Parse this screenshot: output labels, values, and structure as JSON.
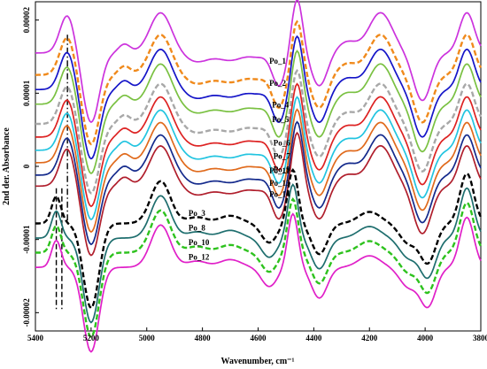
{
  "chart_data": {
    "type": "line",
    "title": "",
    "xlabel": "Wavenumber, cm⁻¹",
    "ylabel": "2nd der. Absorbance",
    "xlim": [
      5400,
      3800
    ],
    "ylim": [
      -2.25e-05,
      2.25e-05
    ],
    "x_reversed": true,
    "grid": false,
    "x_ticks": [
      "5400",
      "5200",
      "5000",
      "4800",
      "4600",
      "4400",
      "4200",
      "4000",
      "3800"
    ],
    "y_ticks": [
      "-0.00002",
      "-0.00001",
      "0",
      "0.00001",
      "0.00002"
    ],
    "reference_lines": [
      {
        "x": 5285,
        "style": "dash-dot"
      },
      {
        "x": 5325,
        "style": "dashed"
      },
      {
        "x": 5305,
        "style": "dashed"
      }
    ],
    "series": [
      {
        "name": "Po_1",
        "offset": 1.55e-05,
        "amp": 1.0,
        "color": "#cc33dd",
        "dash": "solid",
        "label_x": 4560
      },
      {
        "name": "Po_2",
        "offset": 1.25e-05,
        "amp": 1.0,
        "color": "#f08a1c",
        "dash": "dashed",
        "label_x": 4560
      },
      {
        "name": "Po_4",
        "offset": 1.05e-05,
        "amp": 1.0,
        "color": "#1515c8",
        "dash": "solid",
        "label_x": 4550
      },
      {
        "name": "Po_5",
        "offset": 8.5e-06,
        "amp": 1.0,
        "color": "#7ac142",
        "dash": "solid",
        "label_x": 4550
      },
      {
        "name": "Po_6",
        "offset": 5.8e-06,
        "amp": 1.0,
        "color": "#a8a8a8",
        "dash": "dashed",
        "label_x": 4545
      },
      {
        "name": "Po_7",
        "offset": 4e-06,
        "amp": 1.0,
        "color": "#dd2222",
        "dash": "solid",
        "label_x": 4545
      },
      {
        "name": "Po_9",
        "offset": 2.2e-06,
        "amp": 1.0,
        "color": "#22c4e0",
        "dash": "solid",
        "label_x": 4545
      },
      {
        "name": "Po_11",
        "offset": 5e-07,
        "amp": 1.0,
        "color": "#e06a1c",
        "dash": "solid",
        "label_x": 4560
      },
      {
        "name": "Po_13",
        "offset": -1.2e-06,
        "amp": 1.0,
        "color": "#142a8c",
        "dash": "solid",
        "label_x": 4560
      },
      {
        "name": "Po_14",
        "offset": -2.7e-06,
        "amp": 1.0,
        "color": "#b01e2c",
        "dash": "solid",
        "label_x": 4560
      },
      {
        "name": "Po_3",
        "offset": -7.8e-06,
        "amp": 1.05,
        "color": "#000000",
        "dash": "dashed",
        "label_x": 4850
      },
      {
        "name": "Po_8",
        "offset": -9.8e-06,
        "amp": 1.05,
        "color": "#1e6e6e",
        "dash": "solid",
        "label_x": 4850
      },
      {
        "name": "Po_10",
        "offset": -1.18e-05,
        "amp": 1.05,
        "color": "#2ec21e",
        "dash": "dashed",
        "label_x": 4850
      },
      {
        "name": "Po_12",
        "offset": -1.38e-05,
        "amp": 1.05,
        "color": "#e020c8",
        "dash": "solid",
        "label_x": 4850
      }
    ]
  }
}
